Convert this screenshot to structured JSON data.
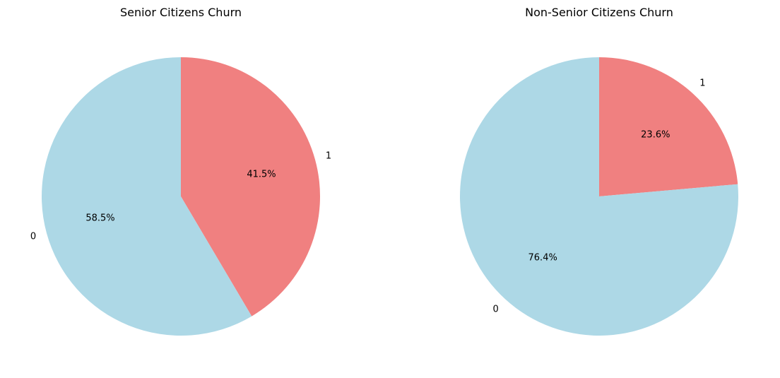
{
  "chart_data": [
    {
      "type": "pie",
      "title": "Senior Citizens Churn",
      "categories": [
        "0",
        "1"
      ],
      "values": [
        58.5,
        41.5
      ],
      "percent_labels": [
        "58.5%",
        "41.5%"
      ],
      "colors": [
        "#add8e6",
        "#f08080"
      ],
      "start_angle_deg": 90,
      "direction": "counterclockwise"
    },
    {
      "type": "pie",
      "title": "Non-Senior Citizens Churn",
      "categories": [
        "0",
        "1"
      ],
      "values": [
        76.4,
        23.6
      ],
      "percent_labels": [
        "76.4%",
        "23.6%"
      ],
      "colors": [
        "#add8e6",
        "#f08080"
      ],
      "start_angle_deg": 90,
      "direction": "counterclockwise"
    }
  ]
}
